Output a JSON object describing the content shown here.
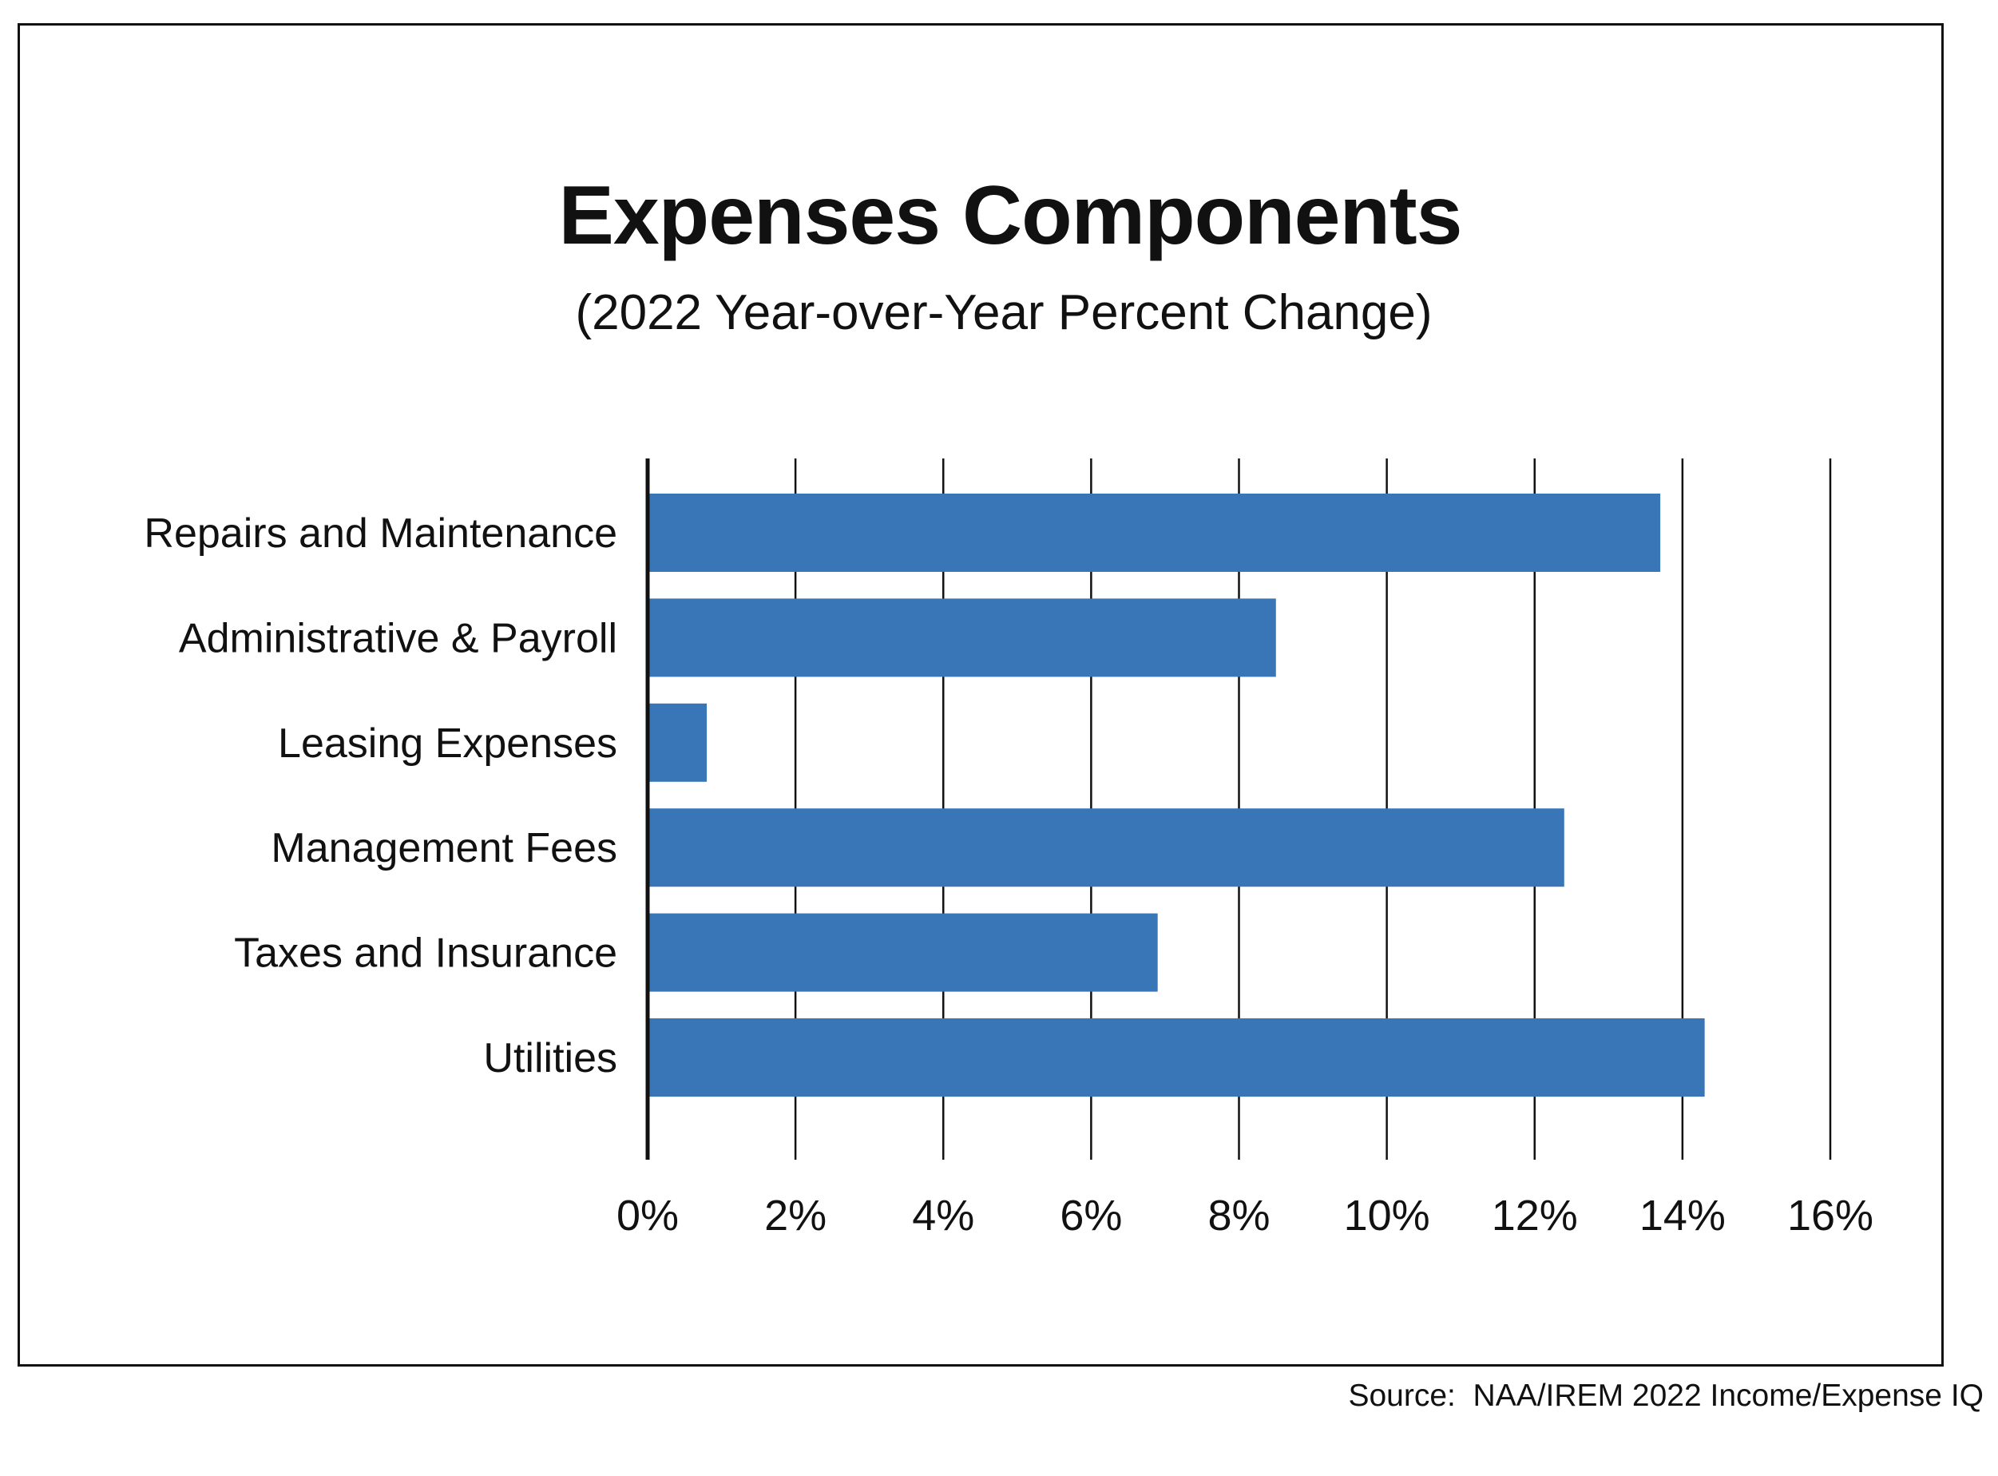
{
  "chart_data": {
    "type": "bar",
    "orientation": "horizontal",
    "title": "Expenses Components",
    "subtitle": "(2022 Year-over-Year Percent Change)",
    "categories": [
      "Repairs and Maintenance",
      "Administrative & Payroll",
      "Leasing Expenses",
      "Management Fees",
      "Taxes and Insurance",
      "Utilities"
    ],
    "values": [
      13.7,
      8.5,
      0.8,
      12.4,
      6.9,
      14.3
    ],
    "xlim": [
      0,
      16
    ],
    "xticks": [
      0,
      2,
      4,
      6,
      8,
      10,
      12,
      14,
      16
    ],
    "xtick_labels": [
      "0%",
      "2%",
      "4%",
      "6%",
      "8%",
      "10%",
      "12%",
      "14%",
      "16%"
    ],
    "xlabel": "",
    "ylabel": "",
    "grid": "vertical",
    "legend": "none",
    "bar_color": "#3876b7",
    "source": "Source:  NAA/IREM 2022 Income/Expense IQ"
  }
}
